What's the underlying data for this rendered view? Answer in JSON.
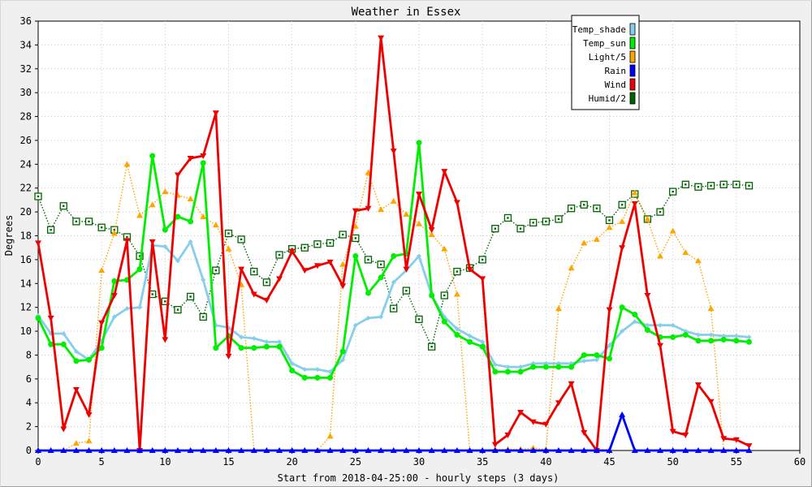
{
  "chart_data": {
    "type": "line",
    "title": "Weather in Essex",
    "xlabel": "Start from 2018-04-25:00 - hourly steps (3 days)",
    "ylabel": "Degrees",
    "xlim": [
      0,
      60
    ],
    "ylim": [
      0,
      36
    ],
    "x_ticks": [
      0,
      5,
      10,
      15,
      20,
      25,
      30,
      35,
      40,
      45,
      50,
      55,
      60
    ],
    "y_ticks": [
      0,
      2,
      4,
      6,
      8,
      10,
      12,
      14,
      16,
      18,
      20,
      22,
      24,
      26,
      28,
      30,
      32,
      34,
      36
    ],
    "grid": true,
    "legend_position": "top-right",
    "series": [
      {
        "name": "Temp_shade",
        "color": "#87ceeb",
        "style": "solid",
        "marker": "diamond",
        "values": [
          11.3,
          9.8,
          9.8,
          8.3,
          7.6,
          9.2,
          11.2,
          11.9,
          12.0,
          17.2,
          17.1,
          15.9,
          17.5,
          14.3,
          10.5,
          10.3,
          9.5,
          9.4,
          9.1,
          9.1,
          7.3,
          6.8,
          6.8,
          6.6,
          7.6,
          10.5,
          11.1,
          11.2,
          14.1,
          15.1,
          16.3,
          13.0,
          11.2,
          10.2,
          9.6,
          9.1,
          7.2,
          7.0,
          7.0,
          7.3,
          7.3,
          7.3,
          7.3,
          7.5,
          7.6,
          8.8,
          10.0,
          10.8,
          10.5,
          10.5,
          10.5,
          10.0,
          9.7,
          9.7,
          9.6,
          9.6,
          9.5
        ]
      },
      {
        "name": "Temp_sun",
        "color": "#00ee00",
        "style": "solid",
        "marker": "circle",
        "values": [
          11.1,
          8.9,
          8.9,
          7.5,
          7.6,
          8.6,
          14.2,
          14.3,
          15.2,
          24.7,
          18.5,
          19.6,
          19.2,
          24.1,
          8.6,
          9.6,
          8.6,
          8.6,
          8.7,
          8.7,
          6.7,
          6.1,
          6.1,
          6.1,
          8.3,
          16.3,
          13.2,
          14.5,
          16.3,
          16.5,
          25.8,
          13.0,
          10.8,
          9.7,
          9.1,
          8.7,
          6.6,
          6.6,
          6.6,
          7.0,
          7.0,
          7.0,
          7.0,
          8.0,
          8.0,
          7.7,
          12.0,
          11.4,
          10.1,
          9.5,
          9.5,
          9.7,
          9.2,
          9.2,
          9.3,
          9.2,
          9.1
        ]
      },
      {
        "name": "Light/5",
        "color": "#ffa500",
        "style": "dotted",
        "marker": "triangle-up",
        "values": [
          0,
          0,
          0,
          0.6,
          0.8,
          15.1,
          18.2,
          24.0,
          19.7,
          20.6,
          21.7,
          21.4,
          21.1,
          19.6,
          18.9,
          16.9,
          13.9,
          0,
          0,
          0,
          0,
          0,
          0,
          1.2,
          15.6,
          18.8,
          23.3,
          20.2,
          20.9,
          19.8,
          19.0,
          18.1,
          16.9,
          13.1,
          0,
          0,
          0.1,
          0.1,
          0.1,
          0.2,
          0.1,
          11.9,
          15.3,
          17.4,
          17.7,
          18.7,
          19.2,
          21.6,
          19.4,
          16.3,
          18.4,
          16.6,
          15.9,
          11.9,
          0,
          0,
          0
        ]
      },
      {
        "name": "Rain",
        "color": "#0000ff",
        "style": "solid",
        "marker": "triangle-up",
        "values": [
          0,
          0,
          0,
          0,
          0,
          0,
          0,
          0,
          0,
          0,
          0,
          0,
          0,
          0,
          0,
          0,
          0,
          0,
          0,
          0,
          0,
          0,
          0,
          0,
          0,
          0,
          0,
          0,
          0,
          0,
          0,
          0,
          0,
          0,
          0,
          0,
          0,
          0,
          0,
          0,
          0,
          0,
          0,
          0,
          0,
          0,
          3.0,
          0,
          0,
          0,
          0,
          0,
          0,
          0,
          0,
          0,
          0
        ]
      },
      {
        "name": "Wind",
        "color": "#ee0000",
        "style": "solid",
        "marker": "triangle-down",
        "values": [
          17.4,
          11.1,
          1.8,
          5.1,
          3.0,
          10.7,
          13.0,
          17.6,
          0,
          17.5,
          9.3,
          23.1,
          24.5,
          24.7,
          28.3,
          7.9,
          15.2,
          13.1,
          12.6,
          14.4,
          16.7,
          15.1,
          15.5,
          15.8,
          13.8,
          20.1,
          20.3,
          34.6,
          25.1,
          15.2,
          21.5,
          18.5,
          23.4,
          20.8,
          15.2,
          14.4,
          0.5,
          1.3,
          3.2,
          2.4,
          2.2,
          4.0,
          5.6,
          1.5,
          0,
          11.8,
          17.0,
          20.7,
          13.0,
          8.8,
          1.6,
          1.3,
          5.5,
          4.1,
          1.0,
          0.9,
          0.4
        ]
      },
      {
        "name": "Humid/2",
        "color": "#006400",
        "style": "dotted",
        "marker": "square",
        "values": [
          21.3,
          18.5,
          20.5,
          19.2,
          19.2,
          18.7,
          18.5,
          17.9,
          16.3,
          13.1,
          12.5,
          11.8,
          12.9,
          11.2,
          15.1,
          18.2,
          17.7,
          15.0,
          14.1,
          16.4,
          16.9,
          17.0,
          17.3,
          17.4,
          18.1,
          17.8,
          16.0,
          15.6,
          11.9,
          13.4,
          11.0,
          8.7,
          13.0,
          15.0,
          15.3,
          16.0,
          18.6,
          19.5,
          18.6,
          19.1,
          19.2,
          19.4,
          20.3,
          20.6,
          20.3,
          19.3,
          20.6,
          21.5,
          19.4,
          20.0,
          21.7,
          22.3,
          22.1,
          22.2,
          22.3,
          22.3,
          22.2
        ]
      }
    ]
  }
}
